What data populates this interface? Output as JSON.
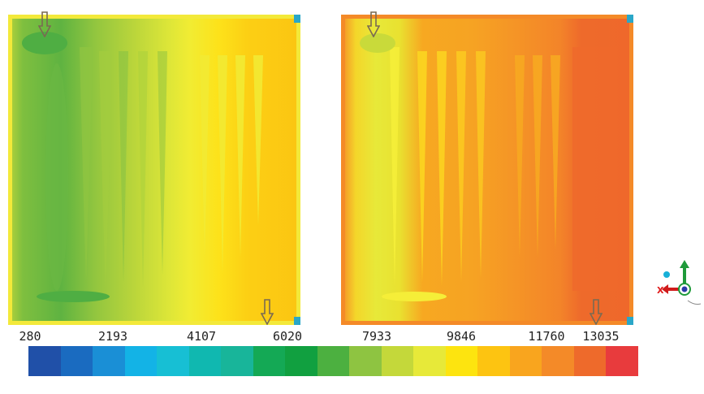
{
  "legend": {
    "ticks": [
      "280",
      "2193",
      "4107",
      "6020",
      "7933",
      "9846",
      "11760",
      "13035"
    ],
    "colors": [
      "#2050a8",
      "#1a6bc0",
      "#1a8fd6",
      "#13b3e6",
      "#17bfd4",
      "#10b8b0",
      "#18b59a",
      "#14a955",
      "#11a040",
      "#4cb040",
      "#8ec441",
      "#c4d83a",
      "#e7e939",
      "#fde40f",
      "#fdc411",
      "#f9a51e",
      "#f48a28",
      "#ee6a2b",
      "#e83b3d"
    ]
  },
  "panels": [
    {
      "name": "left",
      "band_colors": [
        "#8ec441",
        "#b9d43a",
        "#e7e939",
        "#fdc411"
      ]
    },
    {
      "name": "right",
      "band_colors": [
        "#e8e530",
        "#f7a821",
        "#f48a28",
        "#ee6a2b"
      ]
    }
  ],
  "axis_triad": {
    "x_label": "X"
  }
}
